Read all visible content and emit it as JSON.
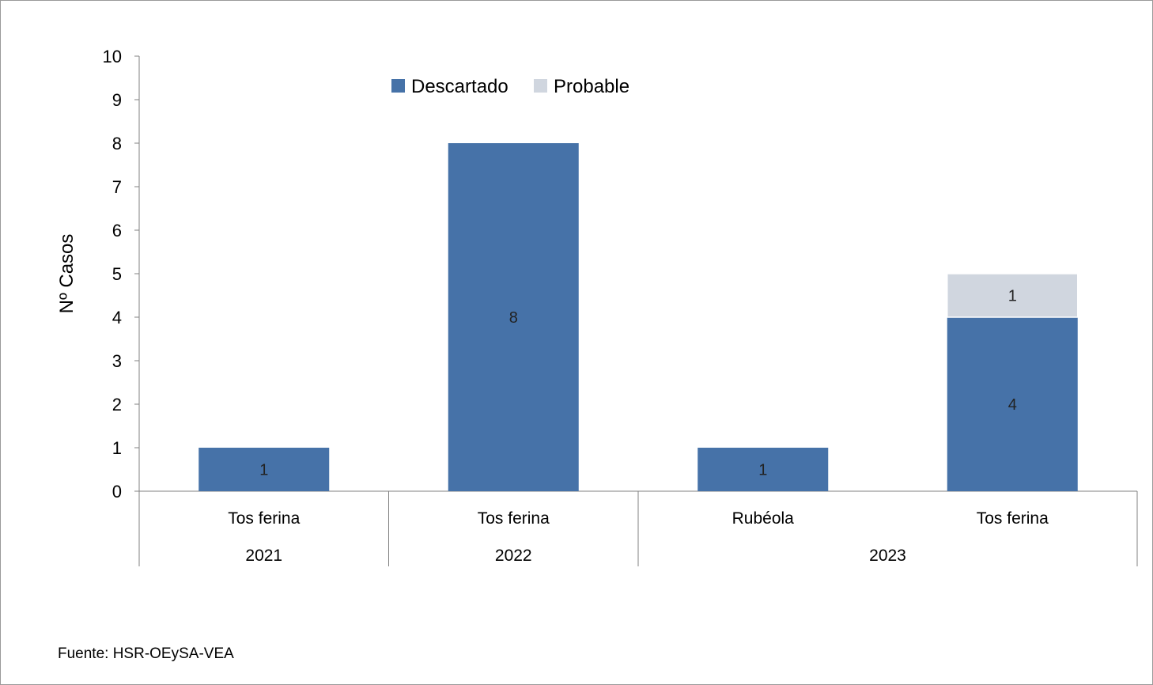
{
  "chart_data": {
    "type": "bar",
    "stacked": true,
    "categories": [
      "Tos ferina",
      "Tos ferina",
      "Rubéola",
      "Tos ferina"
    ],
    "groups": [
      {
        "label": "2021",
        "categories": [
          "Tos ferina"
        ]
      },
      {
        "label": "2022",
        "categories": [
          "Tos ferina"
        ]
      },
      {
        "label": "2023",
        "categories": [
          "Rubéola",
          "Tos ferina"
        ]
      }
    ],
    "series": [
      {
        "name": "Descartado",
        "color": "#4672A8",
        "values": [
          1,
          8,
          1,
          4
        ]
      },
      {
        "name": "Probable",
        "color": "#D0D6DF",
        "values": [
          0,
          0,
          0,
          1
        ]
      }
    ],
    "ylabel": "Nº Casos",
    "ylim": [
      0,
      10
    ],
    "yticks": [
      0,
      1,
      2,
      3,
      4,
      5,
      6,
      7,
      8,
      9,
      10
    ],
    "legend_position": "top-center",
    "grid": false,
    "data_labels": true
  },
  "footer": {
    "source": "Fuente: HSR-OEySA-VEA"
  }
}
